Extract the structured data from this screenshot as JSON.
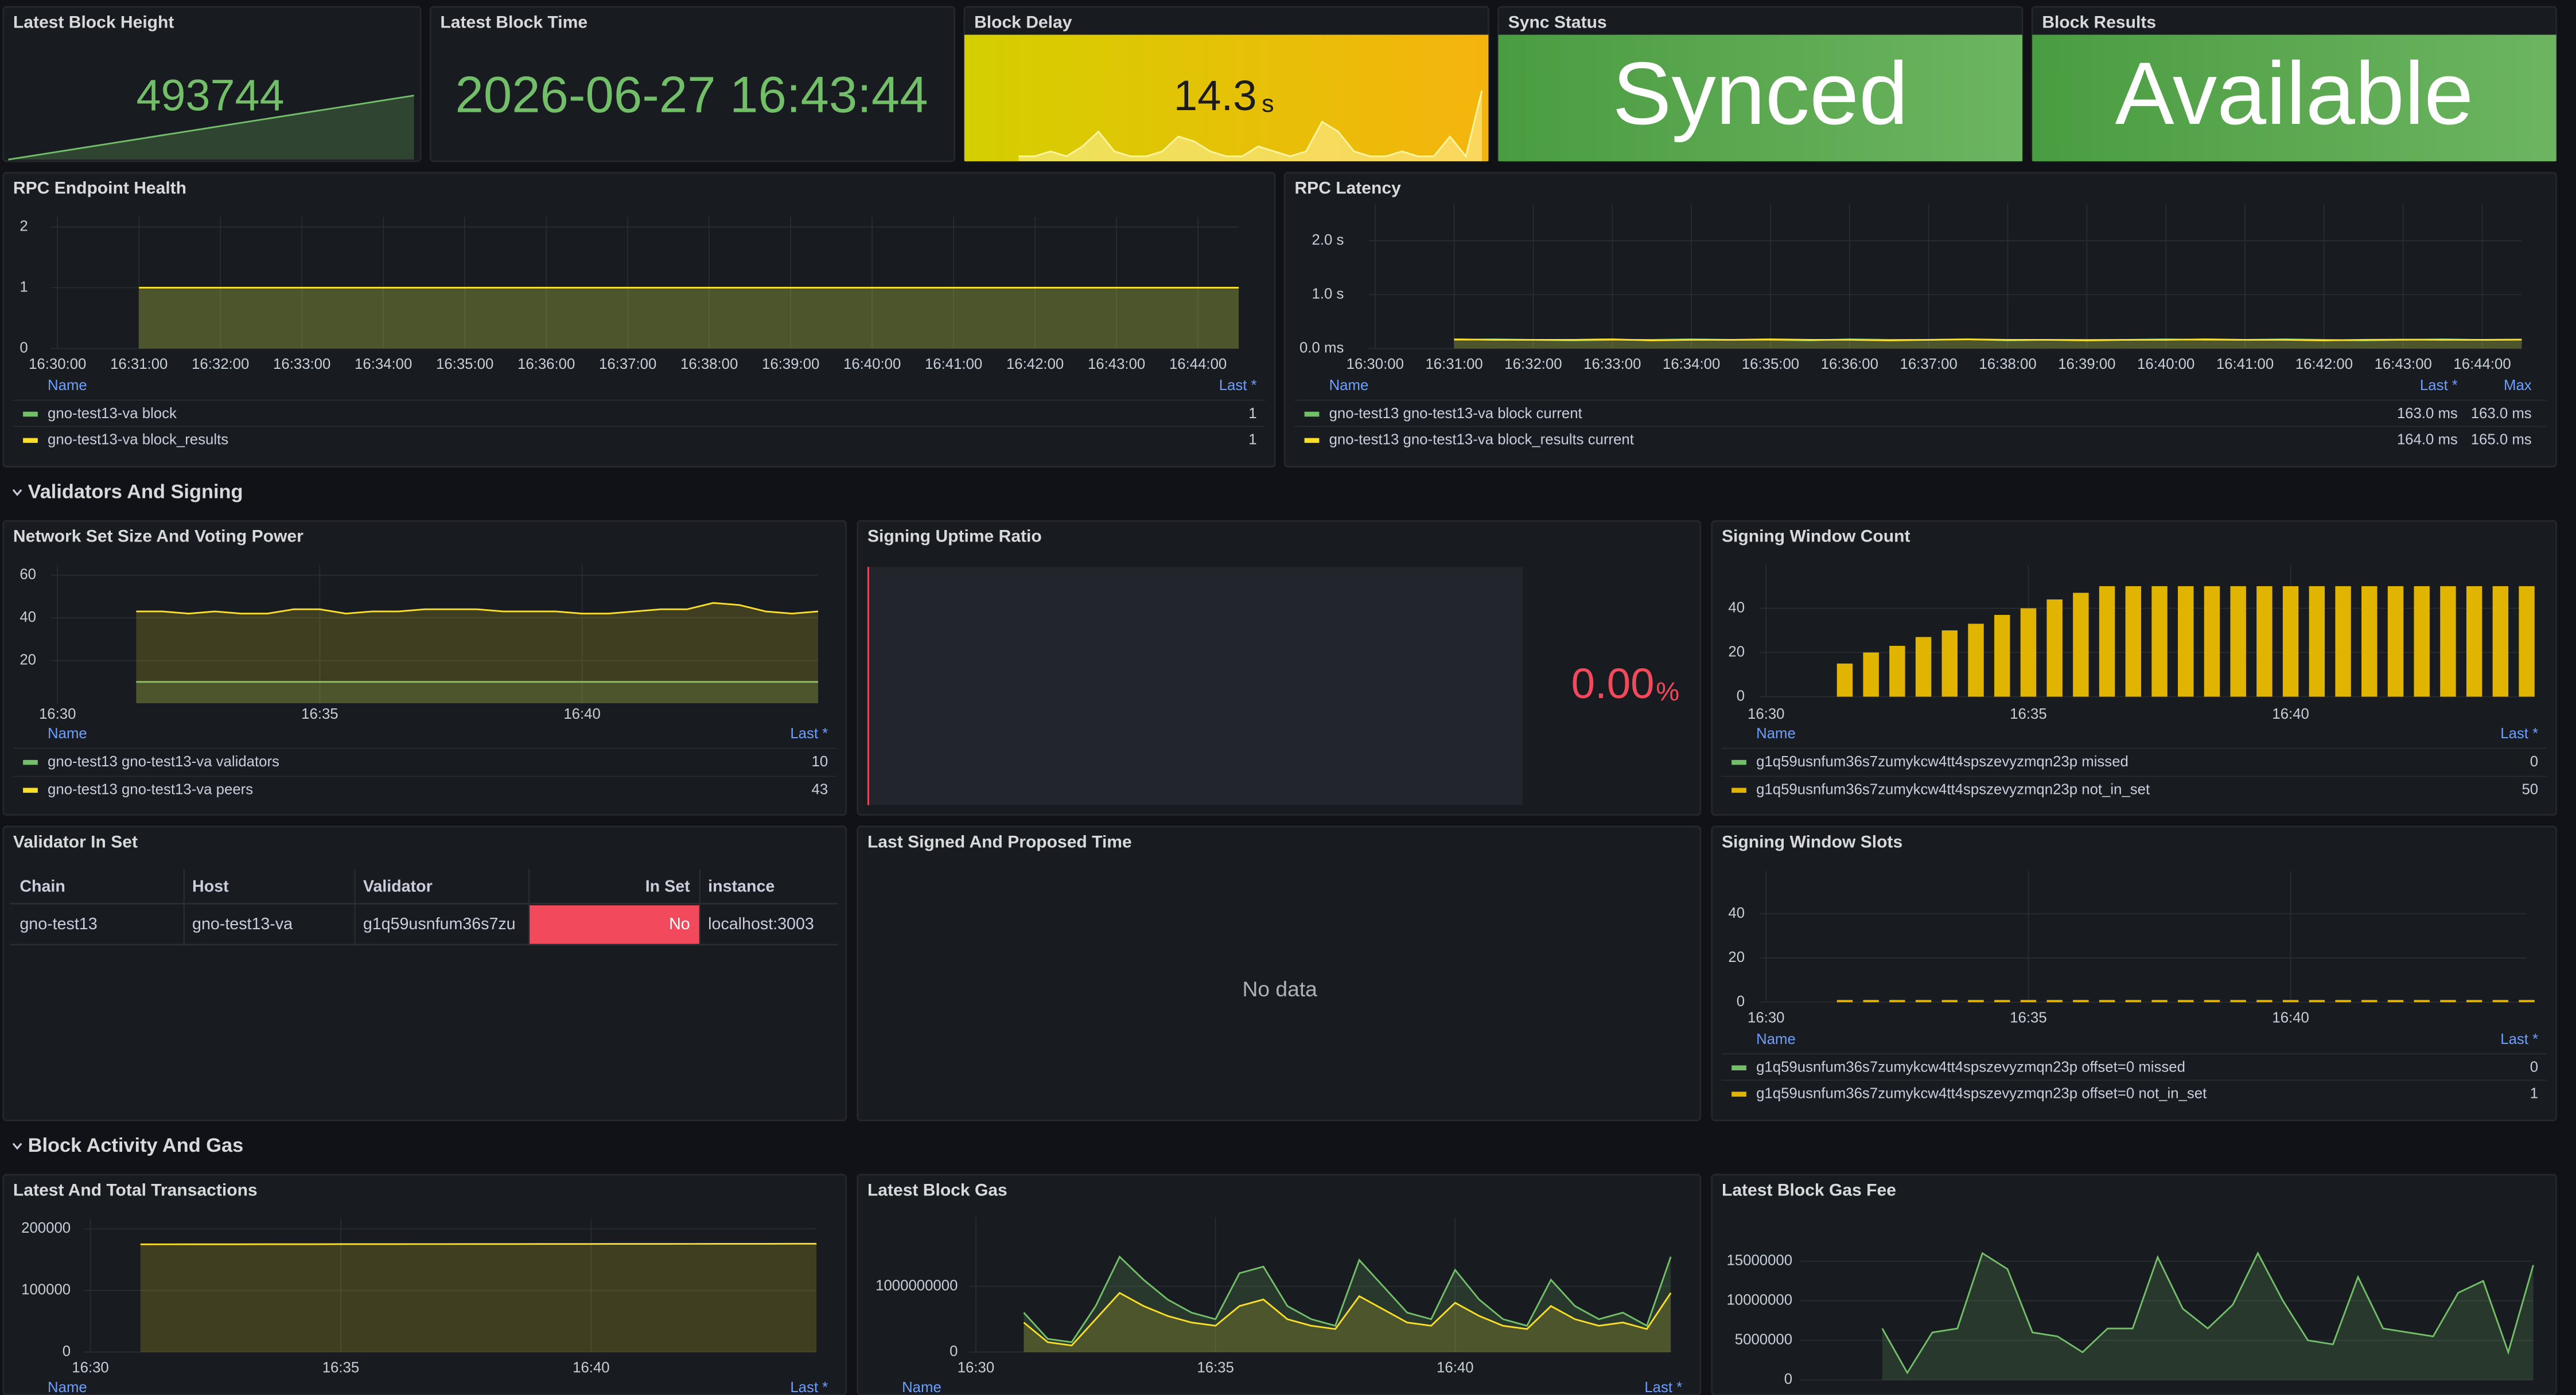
{
  "stats": [
    {
      "title": "Latest Block Height",
      "value": "493744",
      "color": "#73bf69",
      "spark": [
        492294,
        492344,
        492394,
        492444,
        492494,
        492544,
        492594,
        492644,
        492694,
        492744,
        492794,
        492844,
        492894,
        492944,
        492994,
        493044,
        493094,
        493144,
        493194,
        493244,
        493294,
        493344,
        493394,
        493444,
        493494,
        493544,
        493594,
        493644,
        493694,
        493744
      ]
    },
    {
      "title": "Latest Block Time",
      "value": "2026-06-27 16:43:44",
      "color": "#73bf69"
    },
    {
      "title": "Block Delay",
      "value": "14.3",
      "unit": "s",
      "color": "#fff4a0",
      "spark": [
        1,
        1,
        2,
        1,
        3,
        6,
        2,
        1,
        1,
        2,
        5,
        4,
        2,
        1,
        1,
        3,
        2,
        1,
        2,
        8,
        6,
        2,
        1,
        1,
        2,
        1,
        1,
        5,
        1,
        14.3
      ]
    },
    {
      "title": "Sync Status",
      "value": "Synced"
    },
    {
      "title": "Block Results",
      "value": "Available"
    }
  ],
  "sections": [
    "Validators And Signing",
    "Block Activity And Gas"
  ],
  "timeseries": [
    {
      "title": "RPC Endpoint Health",
      "kind": "line",
      "ylim": [
        0,
        2
      ],
      "yticks": [
        0,
        1,
        2
      ],
      "xlim": [
        0,
        14.5
      ],
      "xticks": [
        {
          "value": 0,
          "label": "16:30:00"
        },
        {
          "value": 1,
          "label": "16:31:00"
        },
        {
          "value": 2,
          "label": "16:32:00"
        },
        {
          "value": 3,
          "label": "16:33:00"
        },
        {
          "value": 4,
          "label": "16:34:00"
        },
        {
          "value": 5,
          "label": "16:35:00"
        },
        {
          "value": 6,
          "label": "16:36:00"
        },
        {
          "value": 7,
          "label": "16:37:00"
        },
        {
          "value": 8,
          "label": "16:38:00"
        },
        {
          "value": 9,
          "label": "16:39:00"
        },
        {
          "value": 10,
          "label": "16:40:00"
        },
        {
          "value": 11,
          "label": "16:41:00"
        },
        {
          "value": 12,
          "label": "16:42:00"
        },
        {
          "value": 13,
          "label": "16:43:00"
        },
        {
          "value": 14,
          "label": "16:44:00"
        }
      ],
      "legend_header": [
        "Name",
        "Last *"
      ],
      "series": [
        {
          "name": "gno-test13-va block",
          "color": "#73bf69",
          "legend": [
            "1"
          ],
          "values": [
            null,
            null,
            1,
            1,
            1,
            1,
            1,
            1,
            1,
            1,
            1,
            1,
            1,
            1,
            1,
            1,
            1,
            1,
            1,
            1,
            1,
            1,
            1,
            1,
            1,
            1,
            1,
            1,
            1,
            1
          ]
        },
        {
          "name": "gno-test13-va block_results",
          "color": "#fade2a",
          "legend": [
            "1"
          ],
          "values": [
            null,
            null,
            1,
            1,
            1,
            1,
            1,
            1,
            1,
            1,
            1,
            1,
            1,
            1,
            1,
            1,
            1,
            1,
            1,
            1,
            1,
            1,
            1,
            1,
            1,
            1,
            1,
            1,
            1,
            1
          ]
        }
      ]
    },
    {
      "title": "RPC Latency",
      "kind": "line",
      "ylim": [
        0,
        2.5
      ],
      "yticks": [
        {
          "value": 0,
          "label": "0.0 ms"
        },
        {
          "value": 1,
          "label": "1.0 s"
        },
        {
          "value": 2,
          "label": "2.0 s"
        }
      ],
      "xlim": [
        0,
        14.5
      ],
      "xticks": [
        {
          "value": 0,
          "label": "16:30:00"
        },
        {
          "value": 1,
          "label": "16:31:00"
        },
        {
          "value": 2,
          "label": "16:32:00"
        },
        {
          "value": 3,
          "label": "16:33:00"
        },
        {
          "value": 4,
          "label": "16:34:00"
        },
        {
          "value": 5,
          "label": "16:35:00"
        },
        {
          "value": 6,
          "label": "16:36:00"
        },
        {
          "value": 7,
          "label": "16:37:00"
        },
        {
          "value": 8,
          "label": "16:38:00"
        },
        {
          "value": 9,
          "label": "16:39:00"
        },
        {
          "value": 10,
          "label": "16:40:00"
        },
        {
          "value": 11,
          "label": "16:41:00"
        },
        {
          "value": 12,
          "label": "16:42:00"
        },
        {
          "value": 13,
          "label": "16:43:00"
        },
        {
          "value": 14,
          "label": "16:44:00"
        }
      ],
      "legend_header": [
        "Name",
        "Last *",
        "Max"
      ],
      "series": [
        {
          "name": "gno-test13 gno-test13-va block current",
          "color": "#73bf69",
          "legend": [
            "163.0 ms",
            "163.0 ms"
          ],
          "values": [
            null,
            null,
            0.16,
            0.17,
            0.16,
            0.15,
            0.16,
            0.16,
            0.17,
            0.16,
            0.16,
            0.15,
            0.17,
            0.16,
            0.16,
            0.17,
            0.15,
            0.16,
            0.16,
            0.16,
            0.17,
            0.16,
            0.16,
            0.17,
            0.16,
            0.15,
            0.16,
            0.17,
            0.16,
            0.163
          ]
        },
        {
          "name": "gno-test13 gno-test13-va block_results current",
          "color": "#fade2a",
          "legend": [
            "164.0 ms",
            "165.0 ms"
          ],
          "values": [
            null,
            null,
            0.17,
            0.16,
            0.16,
            0.16,
            0.17,
            0.15,
            0.16,
            0.16,
            0.17,
            0.16,
            0.16,
            0.15,
            0.16,
            0.17,
            0.16,
            0.16,
            0.15,
            0.16,
            0.16,
            0.17,
            0.16,
            0.16,
            0.15,
            0.16,
            0.165,
            0.16,
            0.16,
            0.164
          ]
        }
      ]
    },
    {
      "title": "Network Set Size And Voting Power",
      "kind": "line",
      "ylim": [
        0,
        60
      ],
      "yticks": [
        20,
        40,
        60
      ],
      "xlim": [
        0,
        14.5
      ],
      "xticks": [
        {
          "value": 0,
          "label": "16:30"
        },
        {
          "value": 5,
          "label": "16:35"
        },
        {
          "value": 10,
          "label": "16:40"
        }
      ],
      "legend_header": [
        "Name",
        "Last *"
      ],
      "series": [
        {
          "name": "gno-test13 gno-test13-va validators",
          "color": "#73bf69",
          "legend": [
            "10"
          ],
          "values": [
            null,
            null,
            null,
            10,
            10,
            10,
            10,
            10,
            10,
            10,
            10,
            10,
            10,
            10,
            10,
            10,
            10,
            10,
            10,
            10,
            10,
            10,
            10,
            10,
            10,
            10,
            10,
            10,
            10,
            10
          ]
        },
        {
          "name": "gno-test13 gno-test13-va peers",
          "color": "#fade2a",
          "legend": [
            "43"
          ],
          "values": [
            null,
            null,
            null,
            43,
            43,
            42,
            43,
            42,
            42,
            44,
            44,
            42,
            43,
            43,
            44,
            44,
            44,
            43,
            43,
            43,
            42,
            42,
            43,
            44,
            44,
            47,
            46,
            43,
            42,
            43
          ]
        }
      ]
    },
    {
      "title": "Signing Window Count",
      "kind": "bar",
      "ylim": [
        0,
        55
      ],
      "yticks": [
        0,
        20,
        40
      ],
      "xlim": [
        0,
        14.5
      ],
      "xticks": [
        {
          "value": 0,
          "label": "16:30"
        },
        {
          "value": 5,
          "label": "16:35"
        },
        {
          "value": 10,
          "label": "16:40"
        }
      ],
      "legend_header": [
        "Name",
        "Last *"
      ],
      "series": [
        {
          "name": "g1q59usnfum36s7zumykcw4tt4spszevyzmqn23p missed",
          "color": "#73bf69",
          "legend": [
            "0"
          ],
          "values": [
            null,
            null,
            null,
            0,
            0,
            0,
            0,
            0,
            0,
            0,
            0,
            0,
            0,
            0,
            0,
            0,
            0,
            0,
            0,
            0,
            0,
            0,
            0,
            0,
            0,
            0,
            0,
            0,
            0,
            0
          ]
        },
        {
          "name": "g1q59usnfum36s7zumykcw4tt4spszevyzmqn23p not_in_set",
          "color": "#e0b400",
          "legend": [
            "50"
          ],
          "values": [
            null,
            null,
            null,
            15,
            20,
            23,
            27,
            30,
            33,
            37,
            40,
            44,
            47,
            50,
            50,
            50,
            50,
            50,
            50,
            50,
            50,
            50,
            50,
            50,
            50,
            50,
            50,
            50,
            50,
            50
          ]
        }
      ]
    },
    {
      "title": "Signing Window Slots",
      "kind": "bar",
      "ylim": [
        0,
        55
      ],
      "yticks": [
        0,
        20,
        40
      ],
      "xlim": [
        0,
        14.5
      ],
      "xticks": [
        {
          "value": 0,
          "label": "16:30"
        },
        {
          "value": 5,
          "label": "16:35"
        },
        {
          "value": 10,
          "label": "16:40"
        }
      ],
      "legend_header": [
        "Name",
        "Last *"
      ],
      "series": [
        {
          "name": "g1q59usnfum36s7zumykcw4tt4spszevyzmqn23p offset=0 missed",
          "color": "#73bf69",
          "legend": [
            "0"
          ],
          "values": [
            null,
            null,
            null,
            0,
            0,
            0,
            0,
            0,
            0,
            0,
            0,
            0,
            0,
            0,
            0,
            0,
            0,
            0,
            0,
            0,
            0,
            0,
            0,
            0,
            0,
            0,
            0,
            0,
            0,
            0
          ]
        },
        {
          "name": "g1q59usnfum36s7zumykcw4tt4spszevyzmqn23p offset=0 not_in_set",
          "color": "#e0b400",
          "legend": [
            "1"
          ],
          "values": [
            null,
            null,
            null,
            1,
            1,
            1,
            1,
            1,
            1,
            1,
            1,
            1,
            1,
            1,
            1,
            1,
            1,
            1,
            1,
            1,
            1,
            1,
            1,
            1,
            1,
            1,
            1,
            1,
            1,
            1
          ]
        }
      ]
    },
    {
      "title": "Latest And Total Transactions",
      "kind": "line",
      "ylim": [
        0,
        200000
      ],
      "yticks": [
        0,
        100000,
        200000
      ],
      "xlim": [
        0,
        14.5
      ],
      "xticks": [
        {
          "value": 0,
          "label": "16:30"
        },
        {
          "value": 5,
          "label": "16:35"
        },
        {
          "value": 10,
          "label": "16:40"
        }
      ],
      "legend_header": [
        "Name",
        "Last *"
      ],
      "series": [
        {
          "color": "#fade2a",
          "values": [
            null,
            null,
            174900,
            174950,
            175000,
            175000,
            175050,
            175100,
            175100,
            175150,
            175200,
            175200,
            175250,
            175300,
            175300,
            175350,
            175400,
            175400,
            175450,
            175500,
            175500,
            175550,
            175600,
            175600,
            175650,
            175700,
            175700,
            175750,
            175800,
            175800
          ]
        }
      ]
    },
    {
      "title": "Latest Block Gas",
      "kind": "line",
      "ylim": [
        0,
        1900000000
      ],
      "yticks": [
        0,
        1000000000
      ],
      "xlim": [
        0,
        14.5
      ],
      "xticks": [
        {
          "value": 0,
          "label": "16:30"
        },
        {
          "value": 5,
          "label": "16:35"
        },
        {
          "value": 10,
          "label": "16:40"
        }
      ],
      "legend_header": [
        "Name",
        "Last *"
      ],
      "series": [
        {
          "color": "#73bf69",
          "values": [
            null,
            null,
            600000000,
            200000000,
            150000000,
            700000000,
            1450000000,
            1100000000,
            800000000,
            600000000,
            500000000,
            1200000000,
            1300000000,
            700000000,
            500000000,
            400000000,
            1400000000,
            1000000000,
            600000000,
            500000000,
            1250000000,
            800000000,
            500000000,
            400000000,
            1100000000,
            700000000,
            500000000,
            600000000,
            400000000,
            1450000000
          ]
        },
        {
          "color": "#fade2a",
          "values": [
            null,
            null,
            450000000,
            150000000,
            100000000,
            500000000,
            900000000,
            700000000,
            550000000,
            450000000,
            400000000,
            700000000,
            800000000,
            500000000,
            400000000,
            350000000,
            850000000,
            650000000,
            450000000,
            400000000,
            750000000,
            550000000,
            400000000,
            350000000,
            700000000,
            500000000,
            400000000,
            450000000,
            350000000,
            900000000
          ]
        }
      ]
    },
    {
      "title": "Latest Block Gas Fee",
      "kind": "line",
      "ylim": [
        0,
        17000000
      ],
      "yticks": [
        0,
        5000000,
        10000000,
        15000000
      ],
      "xlim": [
        0,
        14.5
      ],
      "xticks": [],
      "series": [
        {
          "color": "#73bf69",
          "values": [
            null,
            null,
            null,
            6500000,
            900000,
            6000000,
            6500000,
            16000000,
            14000000,
            6000000,
            5500000,
            3500000,
            6500000,
            6500000,
            15500000,
            9000000,
            6500000,
            9500000,
            16000000,
            10000000,
            5000000,
            4500000,
            13000000,
            6500000,
            6000000,
            5500000,
            11000000,
            12500000,
            3500000,
            14500000
          ]
        }
      ]
    }
  ],
  "uptime": {
    "title": "Signing Uptime Ratio",
    "value": "0.00",
    "unit": "%"
  },
  "table": {
    "title": "Validator In Set",
    "columns": [
      "Chain",
      "Host",
      "Validator",
      "In Set",
      "instance"
    ],
    "rows": [
      [
        "gno-test13",
        "gno-test13-va",
        "g1q59usnfum36s7zu",
        "No",
        "localhost:3003"
      ]
    ]
  },
  "empty_panel": {
    "title": "Last Signed And Proposed Time",
    "message": "No data"
  }
}
